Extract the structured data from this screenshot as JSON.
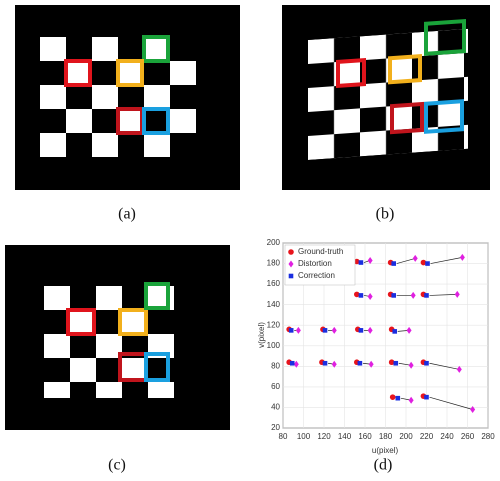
{
  "panel_labels": [
    "(a)",
    "(b)",
    "(c)",
    "(d)"
  ],
  "chart_data": {
    "type": "scatter",
    "xlabel": "u(pixel)",
    "ylabel": "v(pixel)",
    "xlim": [
      80,
      280
    ],
    "xticks": [
      80,
      100,
      120,
      140,
      160,
      180,
      200,
      220,
      240,
      260,
      280
    ],
    "ylim": [
      20,
      200
    ],
    "yticks": [
      20,
      40,
      60,
      80,
      100,
      120,
      140,
      160,
      180,
      200
    ],
    "grid": true,
    "legend": "upper-left",
    "series": [
      {
        "name": "Ground-truth",
        "color": "#e8141c",
        "marker": "circle",
        "x": [
          152,
          185,
          217,
          152,
          185,
          217,
          86,
          119,
          153,
          186,
          86,
          118,
          152,
          186,
          217,
          187,
          217
        ],
        "values": [
          182,
          181,
          181,
          150,
          150,
          150,
          116,
          116,
          116,
          116,
          84,
          84,
          84,
          84,
          84,
          50,
          51
        ]
      },
      {
        "name": "Distortion",
        "color": "#e020e0",
        "marker": "diamond",
        "x": [
          165,
          209,
          255,
          165,
          207,
          250,
          95,
          130,
          165,
          203,
          93,
          130,
          166,
          205,
          252,
          205,
          265
        ],
        "values": [
          183,
          185,
          186,
          148,
          149,
          150,
          115,
          115,
          115,
          115,
          82,
          82,
          82,
          81,
          77,
          47,
          38
        ]
      },
      {
        "name": "Correction",
        "color": "#1a2ee0",
        "marker": "square",
        "x": [
          156,
          188,
          221,
          156,
          188,
          220,
          88,
          121,
          156,
          189,
          89,
          121,
          155,
          190,
          220,
          192,
          220
        ],
        "values": [
          181,
          180,
          180,
          149,
          149,
          149,
          115,
          115,
          115,
          114,
          83,
          83,
          83,
          83,
          83,
          49,
          50
        ]
      }
    ]
  }
}
